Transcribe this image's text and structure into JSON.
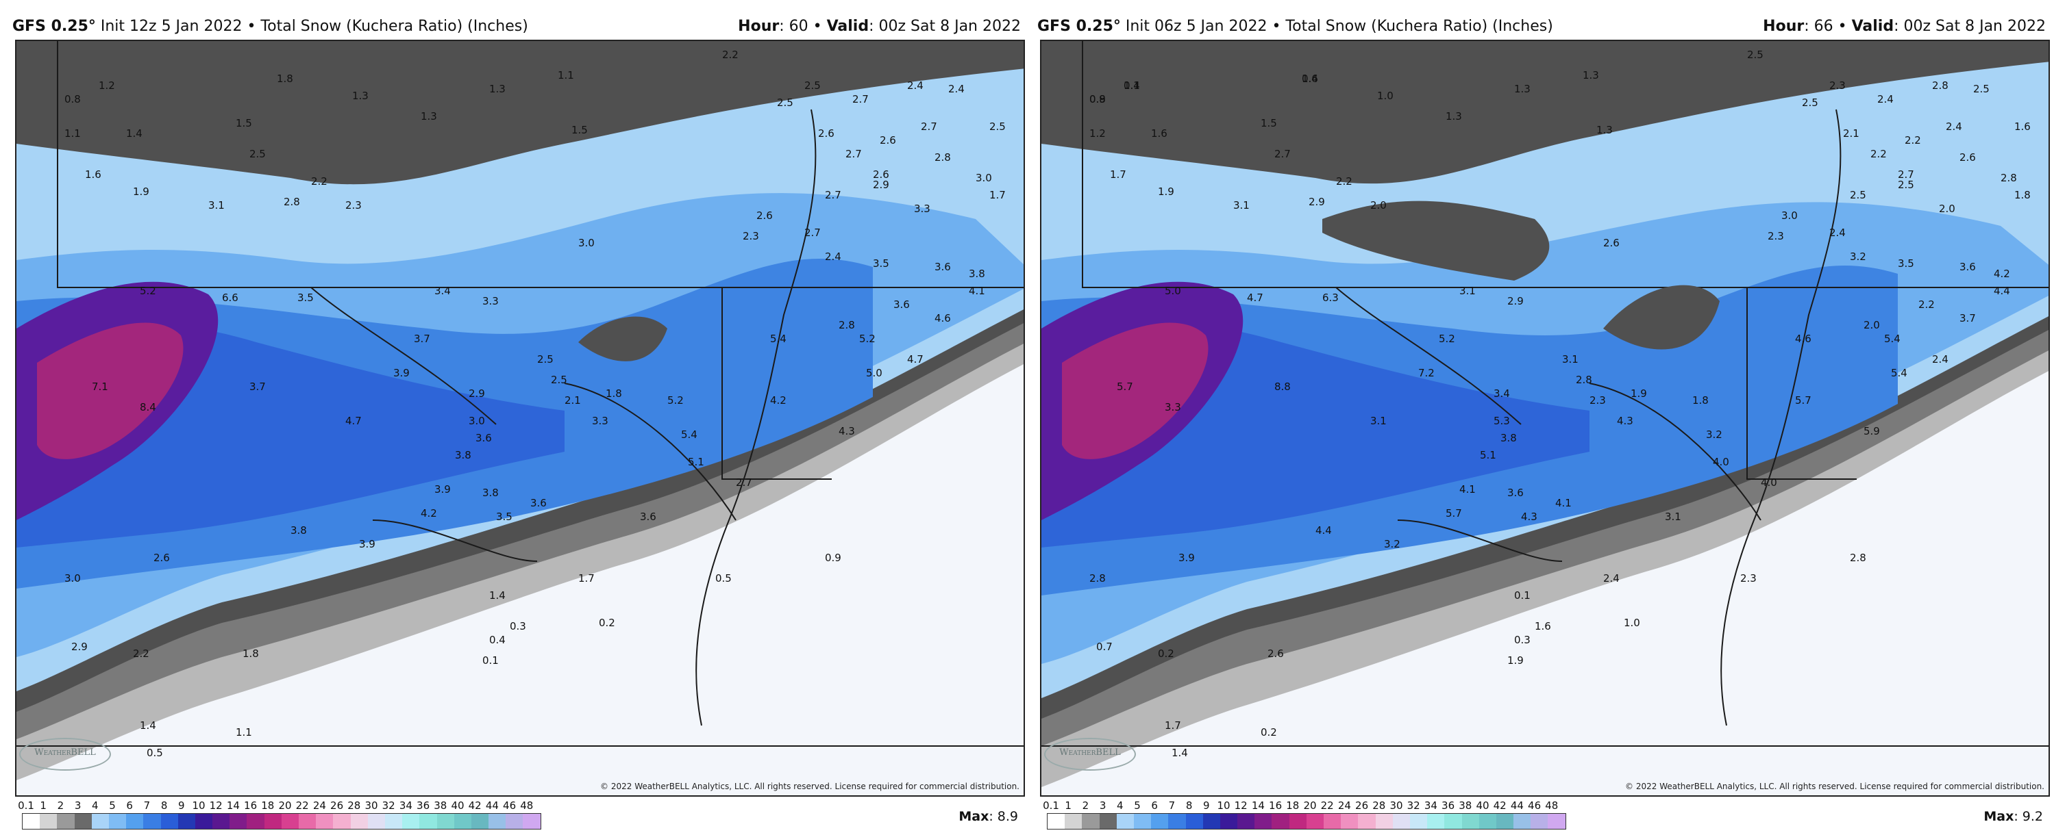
{
  "panels": [
    {
      "model": "GFS 0.25°",
      "init": " Init 12z 5 Jan 2022",
      "product": "Total Snow (Kuchera Ratio) (Inches)",
      "hour_label": "Hour",
      "hour": "60",
      "valid_label": "Valid",
      "valid": "00z Sat 8 Jan 2022",
      "max_label": "Max",
      "max": "8.9",
      "copyright": "© 2022 WeatherBELL Analytics, LLC. All rights reserved. License required for commercial distribution.",
      "logo_text": "WeatherBELL",
      "labels": [
        "0.8",
        "1.2",
        "1.8",
        "1.3",
        "1.3",
        "1.1",
        "2.2",
        "1.1",
        "1.4",
        "1.3",
        "1.5",
        "1.5",
        "2.5",
        "1.6",
        "1.9",
        "2.5",
        "3.1",
        "2.8",
        "2.3",
        "2.2",
        "2.7",
        "2.5",
        "2.4",
        "2.4",
        "2.7",
        "2.5",
        "1.7",
        "2.6",
        "2.7",
        "2.6",
        "2.8",
        "2.6",
        "3.0",
        "2.9",
        "3.3",
        "2.7",
        "2.6",
        "2.3",
        "3.0",
        "2.7",
        "2.4",
        "3.5",
        "3.6",
        "3.8",
        "4.1",
        "5.2",
        "6.6",
        "3.5",
        "3.4",
        "3.3",
        "2.8",
        "3.6",
        "4.6",
        "5.4",
        "3.7",
        "2.5",
        "4.7",
        "5.2",
        "5.0",
        "7.1",
        "3.9",
        "8.4",
        "3.7",
        "2.9",
        "2.5",
        "2.1",
        "1.8",
        "5.2",
        "4.2",
        "3.0",
        "4.7",
        "3.6",
        "3.3",
        "5.4",
        "4.3",
        "3.8",
        "3.9",
        "3.6",
        "5.1",
        "3.8",
        "4.2",
        "3.8",
        "3.5",
        "3.9",
        "3.6",
        "2.7",
        "2.6",
        "3.0",
        "1.7",
        "0.9",
        "1.4",
        "0.5",
        "0.3",
        "0.2",
        "0.4",
        "2.9",
        "2.2",
        "1.8",
        "0.1",
        "1.4",
        "0.5",
        "1.1"
      ],
      "legend_ticks": [
        "0.1",
        "1",
        "2",
        "3",
        "4",
        "5",
        "6",
        "7",
        "8",
        "9",
        "10",
        "12",
        "14",
        "16",
        "18",
        "20",
        "22",
        "24",
        "26",
        "28",
        "30",
        "32",
        "34",
        "36",
        "38",
        "40",
        "42",
        "44",
        "46",
        "48"
      ]
    },
    {
      "model": "GFS 0.25°",
      "init": " Init 06z 5 Jan 2022",
      "product": "Total Snow (Kuchera Ratio) (Inches)",
      "hour_label": "Hour",
      "hour": "66",
      "valid_label": "Valid",
      "valid": "00z Sat 8 Jan 2022",
      "max_label": "Max",
      "max": "9.2",
      "copyright": "© 2022 WeatherBELL Analytics, LLC. All rights reserved. License required for commercial distribution.",
      "logo_text": "WeatherBELL",
      "labels": [
        "0.9",
        "1.1",
        "1.6",
        "1.0",
        "1.3",
        "1.3",
        "2.5",
        "1.2",
        "1.6",
        "1.3",
        "1.5",
        "1.3",
        "2.7",
        "1.7",
        "1.9",
        "2.3",
        "3.1",
        "2.9",
        "2.0",
        "2.2",
        "2.4",
        "2.5",
        "2.8",
        "2.5",
        "2.4",
        "1.6",
        "1.8",
        "2.1",
        "2.2",
        "2.2",
        "2.6",
        "2.7",
        "2.8",
        "2.5",
        "2.0",
        "2.5",
        "3.0",
        "2.3",
        "2.6",
        "2.4",
        "3.2",
        "3.5",
        "3.6",
        "4.2",
        "4.4",
        "5.0",
        "4.7",
        "6.3",
        "3.1",
        "2.9",
        "2.0",
        "2.2",
        "3.7",
        "4.6",
        "5.2",
        "3.1",
        "2.4",
        "5.4",
        "5.4",
        "5.7",
        "7.2",
        "3.3",
        "8.8",
        "3.4",
        "2.8",
        "2.3",
        "1.9",
        "1.8",
        "5.7",
        "5.3",
        "3.1",
        "3.8",
        "4.3",
        "3.2",
        "5.9",
        "5.1",
        "4.1",
        "4.1",
        "4.0",
        "3.6",
        "5.7",
        "4.4",
        "4.3",
        "3.2",
        "3.1",
        "4.0",
        "3.9",
        "2.8",
        "2.4",
        "2.8",
        "0.1",
        "2.3",
        "1.6",
        "1.0",
        "0.3",
        "0.7",
        "0.2",
        "2.6",
        "1.9",
        "1.7",
        "1.4",
        "0.2",
        "0.8",
        "0.4",
        "0.4"
      ],
      "legend_ticks": [
        "0.1",
        "1",
        "2",
        "3",
        "4",
        "5",
        "6",
        "7",
        "8",
        "9",
        "10",
        "12",
        "14",
        "16",
        "18",
        "20",
        "22",
        "24",
        "26",
        "28",
        "30",
        "32",
        "34",
        "36",
        "38",
        "40",
        "42",
        "44",
        "46",
        "48"
      ]
    }
  ],
  "colors": {
    "legend": [
      "#ffffff",
      "#d4d4d4",
      "#9a9a9a",
      "#6a6a6a",
      "#a9d4f8",
      "#7fbcf4",
      "#54a0ee",
      "#3a7ee4",
      "#2a5ed8",
      "#2338b4",
      "#3a1a9a",
      "#5a1890",
      "#801c8a",
      "#a02080",
      "#c02880",
      "#d84090",
      "#e86aa8",
      "#f090c0",
      "#f4b0d0",
      "#f2d0e4",
      "#e0e0f4",
      "#c8e8f8",
      "#a8f0f0",
      "#90e8e0",
      "#80d8d0",
      "#70c8c8",
      "#68b8c0",
      "#98c0e8",
      "#b8b0e8",
      "#d0a8f0"
    ],
    "ocean": "#f3f6fb",
    "gray_dark": "#505050",
    "gray_mid": "#7a7a7a",
    "gray_light": "#b8b8b8",
    "blue_light": "#a8d4f6",
    "blue_mid": "#6fb0f0",
    "blue_dark": "#3e84e2",
    "blue_deep": "#2c5fd6",
    "purple": "#5a1d9e",
    "magenta": "#a3267c"
  }
}
